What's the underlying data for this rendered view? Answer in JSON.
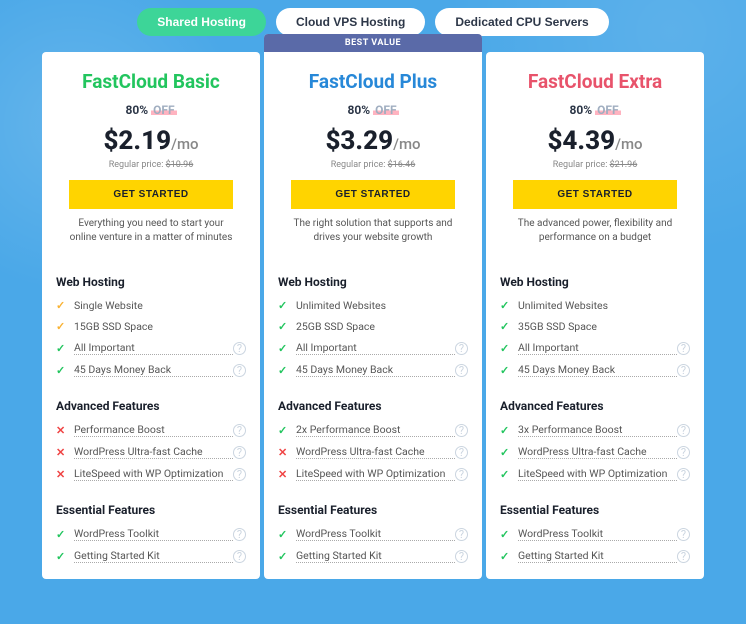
{
  "tabs": [
    {
      "label": "Shared Hosting",
      "active": true
    },
    {
      "label": "Cloud VPS Hosting",
      "active": false
    },
    {
      "label": "Dedicated CPU Servers",
      "active": false
    }
  ],
  "best_value_label": "BEST VALUE",
  "plans": [
    {
      "name": "FastCloud Basic",
      "title_color": "#22c55e",
      "discount_pct": "80%",
      "discount_off": "OFF",
      "price": "$2.19",
      "per": "/mo",
      "regular_label": "Regular price:",
      "regular_price": "$10.96",
      "cta": "GET STARTED",
      "tagline": "Everything you need to start your online venture in a matter of minutes",
      "best_value": false,
      "sections": [
        {
          "title": "Web Hosting",
          "features": [
            {
              "icon": "star",
              "text": "Single Website",
              "dotted": false,
              "info": false
            },
            {
              "icon": "star",
              "text": "15GB SSD Space",
              "dotted": false,
              "info": false
            },
            {
              "icon": "check",
              "text": "All Important",
              "dotted": true,
              "info": true
            },
            {
              "icon": "check",
              "text": "45 Days Money Back",
              "dotted": true,
              "info": true
            }
          ]
        },
        {
          "title": "Advanced Features",
          "features": [
            {
              "icon": "x",
              "text": "Performance Boost",
              "dotted": true,
              "info": true
            },
            {
              "icon": "x",
              "text": "WordPress Ultra-fast Cache",
              "dotted": true,
              "info": true
            },
            {
              "icon": "x",
              "text": "LiteSpeed with WP Optimization",
              "dotted": true,
              "info": true
            }
          ]
        },
        {
          "title": "Essential Features",
          "features": [
            {
              "icon": "check",
              "text": "WordPress Toolkit",
              "dotted": true,
              "info": true
            },
            {
              "icon": "check",
              "text": "Getting Started Kit",
              "dotted": true,
              "info": true
            }
          ]
        }
      ]
    },
    {
      "name": "FastCloud Plus",
      "title_color": "#2788d8",
      "discount_pct": "80%",
      "discount_off": "OFF",
      "price": "$3.29",
      "per": "/mo",
      "regular_label": "Regular price:",
      "regular_price": "$16.46",
      "cta": "GET STARTED",
      "tagline": "The right solution that supports and drives your website growth",
      "best_value": true,
      "sections": [
        {
          "title": "Web Hosting",
          "features": [
            {
              "icon": "check",
              "text": "Unlimited Websites",
              "dotted": false,
              "info": false
            },
            {
              "icon": "check",
              "text": "25GB SSD Space",
              "dotted": false,
              "info": false
            },
            {
              "icon": "check",
              "text": "All Important",
              "dotted": true,
              "info": true
            },
            {
              "icon": "check",
              "text": "45 Days Money Back",
              "dotted": true,
              "info": true
            }
          ]
        },
        {
          "title": "Advanced Features",
          "features": [
            {
              "icon": "check",
              "text": "2x Performance Boost",
              "dotted": true,
              "info": true
            },
            {
              "icon": "x",
              "text": "WordPress Ultra-fast Cache",
              "dotted": true,
              "info": true
            },
            {
              "icon": "x",
              "text": "LiteSpeed with WP Optimization",
              "dotted": true,
              "info": true
            }
          ]
        },
        {
          "title": "Essential Features",
          "features": [
            {
              "icon": "check",
              "text": "WordPress Toolkit",
              "dotted": true,
              "info": true
            },
            {
              "icon": "check",
              "text": "Getting Started Kit",
              "dotted": true,
              "info": true
            }
          ]
        }
      ]
    },
    {
      "name": "FastCloud Extra",
      "title_color": "#e8536b",
      "discount_pct": "80%",
      "discount_off": "OFF",
      "price": "$4.39",
      "per": "/mo",
      "regular_label": "Regular price:",
      "regular_price": "$21.96",
      "cta": "GET STARTED",
      "tagline": "The advanced power, flexibility and performance on a budget",
      "best_value": false,
      "sections": [
        {
          "title": "Web Hosting",
          "features": [
            {
              "icon": "check",
              "text": "Unlimited Websites",
              "dotted": false,
              "info": false
            },
            {
              "icon": "check",
              "text": "35GB SSD Space",
              "dotted": false,
              "info": false
            },
            {
              "icon": "check",
              "text": "All Important",
              "dotted": true,
              "info": true
            },
            {
              "icon": "check",
              "text": "45 Days Money Back",
              "dotted": true,
              "info": true
            }
          ]
        },
        {
          "title": "Advanced Features",
          "features": [
            {
              "icon": "check",
              "text": "3x Performance Boost",
              "dotted": true,
              "info": true
            },
            {
              "icon": "check",
              "text": "WordPress Ultra-fast Cache",
              "dotted": true,
              "info": true
            },
            {
              "icon": "check",
              "text": "LiteSpeed with WP Optimization",
              "dotted": true,
              "info": true
            }
          ]
        },
        {
          "title": "Essential Features",
          "features": [
            {
              "icon": "check",
              "text": "WordPress Toolkit",
              "dotted": true,
              "info": true
            },
            {
              "icon": "check",
              "text": "Getting Started Kit",
              "dotted": true,
              "info": true
            }
          ]
        }
      ]
    }
  ]
}
